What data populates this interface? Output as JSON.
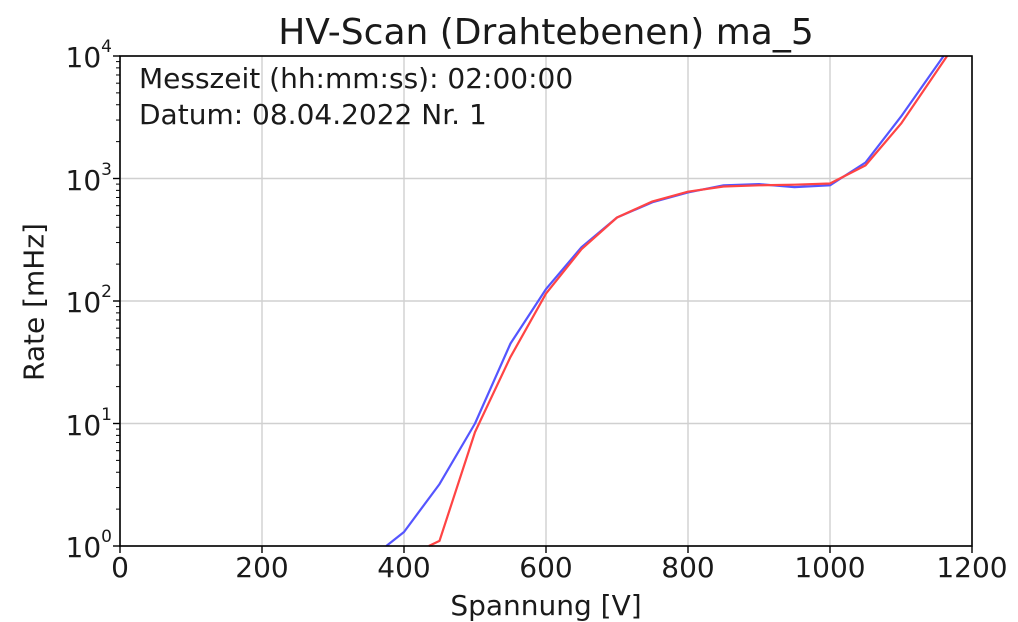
{
  "chart_data": {
    "type": "line",
    "title": "HV-Scan (Drahtebenen) ma_5",
    "xlabel": "Spannung [V]",
    "ylabel": "Rate [mHz]",
    "xlim": [
      0,
      1200
    ],
    "ylim": [
      1,
      10000
    ],
    "yscale": "log",
    "grid": true,
    "x_ticks": [
      "0",
      "200",
      "400",
      "600",
      "800",
      "1000",
      "1200"
    ],
    "y_ticks": [
      {
        "base": "10",
        "exp": "0"
      },
      {
        "base": "10",
        "exp": "1"
      },
      {
        "base": "10",
        "exp": "2"
      },
      {
        "base": "10",
        "exp": "3"
      },
      {
        "base": "10",
        "exp": "4"
      }
    ],
    "annotations": [
      "Messzeit (hh:mm:ss): 02:00:00",
      "Datum: 08.04.2022 Nr. 1"
    ],
    "series": [
      {
        "color": "#5555ff",
        "points": [
          [
            375,
            1.0
          ],
          [
            400,
            1.3
          ],
          [
            450,
            3.2
          ],
          [
            500,
            10
          ],
          [
            550,
            45
          ],
          [
            600,
            125
          ],
          [
            650,
            275
          ],
          [
            700,
            480
          ],
          [
            750,
            640
          ],
          [
            800,
            770
          ],
          [
            850,
            880
          ],
          [
            900,
            900
          ],
          [
            950,
            850
          ],
          [
            1000,
            880
          ],
          [
            1050,
            1350
          ],
          [
            1100,
            3200
          ],
          [
            1160,
            10000
          ]
        ]
      },
      {
        "color": "#ff4444",
        "points": [
          [
            435,
            1.0
          ],
          [
            450,
            1.1
          ],
          [
            500,
            8.5
          ],
          [
            550,
            35
          ],
          [
            600,
            115
          ],
          [
            650,
            265
          ],
          [
            700,
            480
          ],
          [
            750,
            650
          ],
          [
            800,
            780
          ],
          [
            850,
            860
          ],
          [
            900,
            880
          ],
          [
            950,
            890
          ],
          [
            1000,
            910
          ],
          [
            1050,
            1280
          ],
          [
            1100,
            2800
          ],
          [
            1165,
            10000
          ]
        ]
      }
    ]
  }
}
